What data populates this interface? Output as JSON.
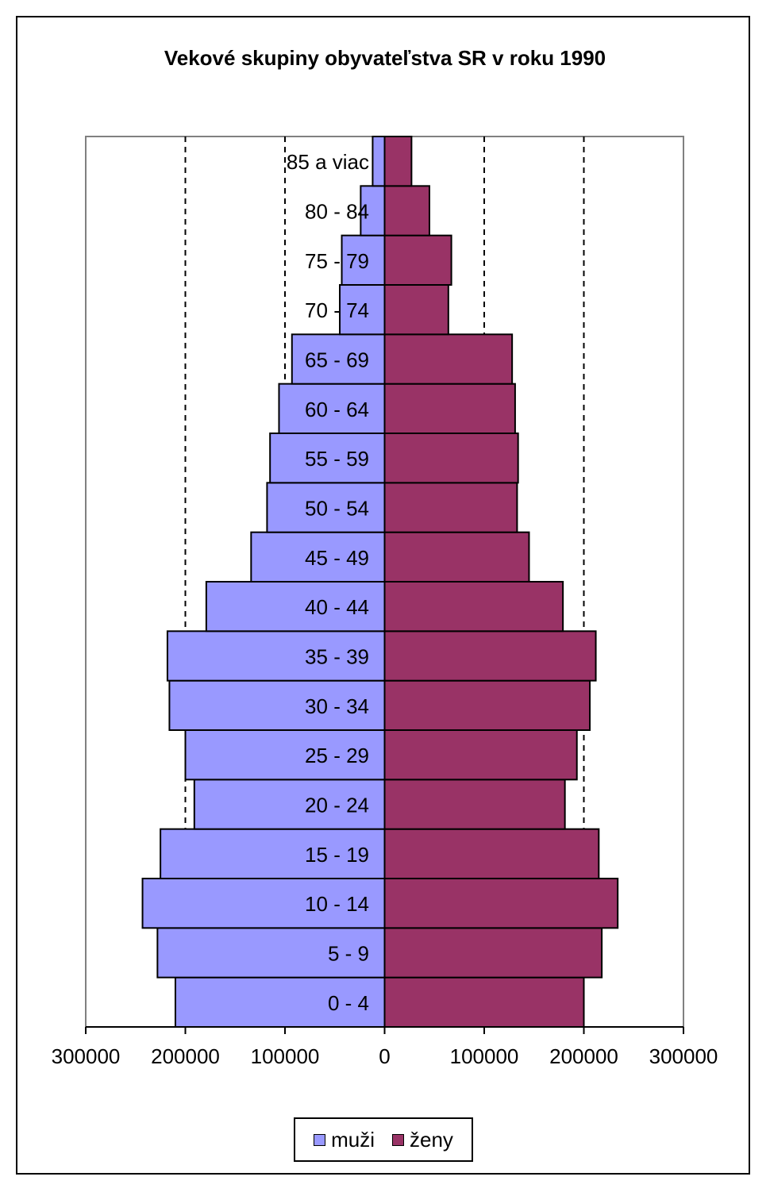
{
  "chart_data": {
    "type": "bar",
    "orientation": "horizontal-population-pyramid",
    "title": "Vekové skupiny obyvateľstva SR v roku 1990",
    "categories": [
      "0 - 4",
      "5 - 9",
      "10 - 14",
      "15 - 19",
      "20 - 24",
      "25 - 29",
      "30 - 34",
      "35 - 39",
      "40 - 44",
      "45 - 49",
      "50 - 54",
      "55 - 59",
      "60 - 64",
      "65 - 69",
      "70 - 74",
      "75 - 79",
      "80 - 84",
      "85 a viac"
    ],
    "series": [
      {
        "name": "muži",
        "color": "#9999ff",
        "values": [
          210000,
          228000,
          243000,
          225000,
          191000,
          200000,
          216000,
          218000,
          179000,
          134000,
          118000,
          115000,
          106000,
          93000,
          45000,
          43000,
          24000,
          12000
        ]
      },
      {
        "name": "ženy",
        "color": "#993366",
        "values": [
          200000,
          218000,
          234000,
          215000,
          181000,
          193000,
          206000,
          212000,
          179000,
          145000,
          133000,
          134000,
          131000,
          128000,
          64000,
          67000,
          45000,
          27000
        ]
      }
    ],
    "xlim": [
      -300000,
      300000
    ],
    "ticks": [
      -300000,
      -200000,
      -100000,
      0,
      100000,
      200000,
      300000
    ],
    "tick_labels": [
      "300000",
      "200000",
      "100000",
      "0",
      "100000",
      "200000",
      "300000"
    ],
    "grid": "vertical dashed",
    "legend_position": "bottom"
  }
}
